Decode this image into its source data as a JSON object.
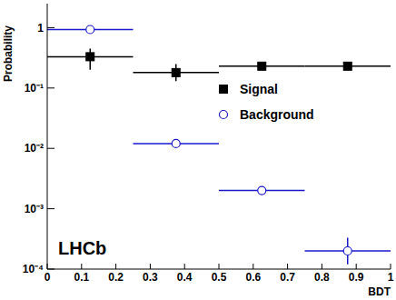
{
  "chart_data": {
    "type": "scatter",
    "x_label": "BDT",
    "y_label": "Probability",
    "annotations": [
      "LHCb"
    ],
    "log": "y",
    "grid": false,
    "legend": "right",
    "xlim": [
      0,
      1
    ],
    "xticks": [
      0,
      0.1,
      0.2,
      0.3,
      0.4,
      0.5,
      0.6,
      0.7,
      0.8,
      0.9,
      1
    ],
    "ylim": [
      0.0001,
      2.5
    ],
    "yticks": [
      {
        "value": 0.0001,
        "label": "10⁻⁴"
      },
      {
        "value": 0.001,
        "label": "10⁻³"
      },
      {
        "value": 0.01,
        "label": "10⁻²"
      },
      {
        "value": 0.1,
        "label": "10⁻¹"
      },
      1
    ],
    "series": [
      {
        "name": "Signal",
        "color": "#000000",
        "marker": "square",
        "x": [
          0.125,
          0.375,
          0.625,
          0.875
        ],
        "values": [
          0.33,
          0.18,
          0.23,
          0.23
        ],
        "xerr": [
          0.125,
          0.125,
          0.125,
          0.125
        ],
        "yerr": [
          [
            0.13,
            0.12
          ],
          [
            0.05,
            0.07
          ],
          [
            0.02,
            0.03
          ],
          [
            0.03,
            0.04
          ]
        ]
      },
      {
        "name": "Background",
        "color": "#1a1acc",
        "marker": "circle",
        "x": [
          0.125,
          0.375,
          0.625,
          0.875
        ],
        "values": [
          0.93,
          0.012,
          0.002,
          0.0002
        ],
        "xerr": [
          0.125,
          0.125,
          0.125,
          0.125
        ],
        "yerr": [
          [
            0,
            0
          ],
          [
            0,
            0
          ],
          [
            0,
            0
          ],
          [
            8e-05,
            0.00013
          ]
        ]
      }
    ]
  }
}
